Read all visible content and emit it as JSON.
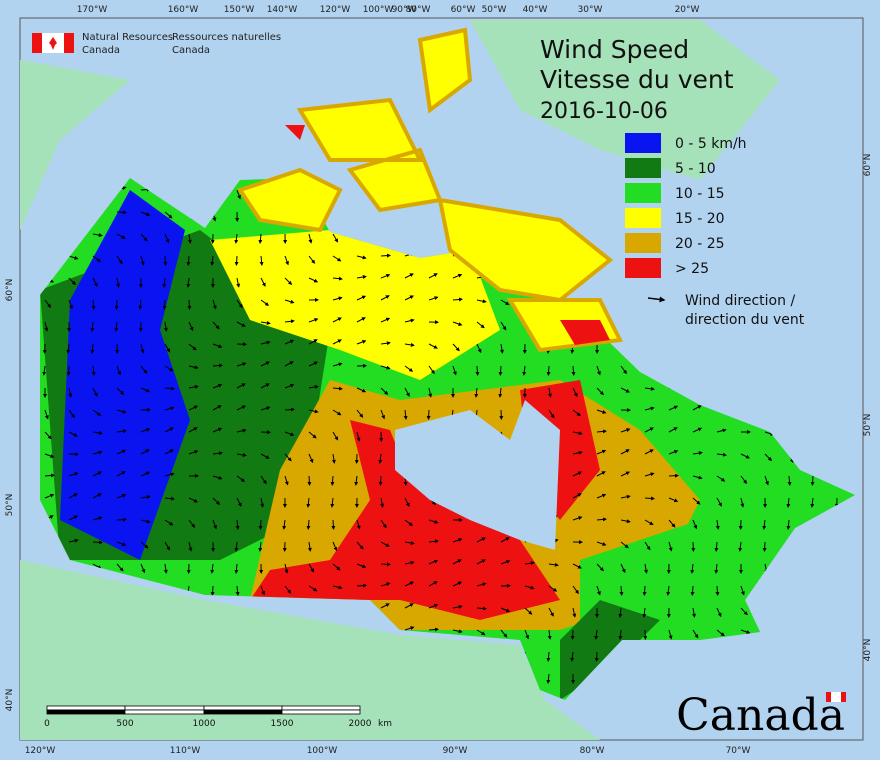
{
  "header": {
    "org_en_1": "Natural Resources",
    "org_en_2": "Canada",
    "org_fr_1": "Ressources naturelles",
    "org_fr_2": "Canada"
  },
  "title": {
    "en": "Wind Speed",
    "fr": "Vitesse du vent",
    "date": "2016-10-06"
  },
  "legend": {
    "items": [
      {
        "label": "0 - 5 km/h",
        "color": "#0a14f0"
      },
      {
        "label": "5 - 10",
        "color": "#127a12"
      },
      {
        "label": "10 - 15",
        "color": "#22dd22"
      },
      {
        "label": "15 - 20",
        "color": "#ffff00"
      },
      {
        "label": "20 - 25",
        "color": "#d9a800"
      },
      {
        "label": "> 25",
        "color": "#ee1111"
      }
    ],
    "arrow_label_1": "Wind direction /",
    "arrow_label_2": "direction du vent"
  },
  "graticule": {
    "top": [
      "170°W",
      "160°W",
      "150°W",
      "140°W",
      "120°W",
      "100°W",
      "90°W",
      "80°W",
      "60°W",
      "50°W",
      "40°W",
      "30°W",
      "20°W"
    ],
    "bottom": [
      "120°W",
      "110°W",
      "100°W",
      "90°W",
      "80°W",
      "70°W"
    ],
    "left": [
      "60°N",
      "50°N",
      "40°N"
    ],
    "right": [
      "60°N",
      "50°N",
      "40°N"
    ]
  },
  "scale_bar": {
    "labels": [
      "0",
      "500",
      "1000",
      "1500",
      "2000"
    ],
    "unit": "km"
  },
  "wordmark": "Canada"
}
